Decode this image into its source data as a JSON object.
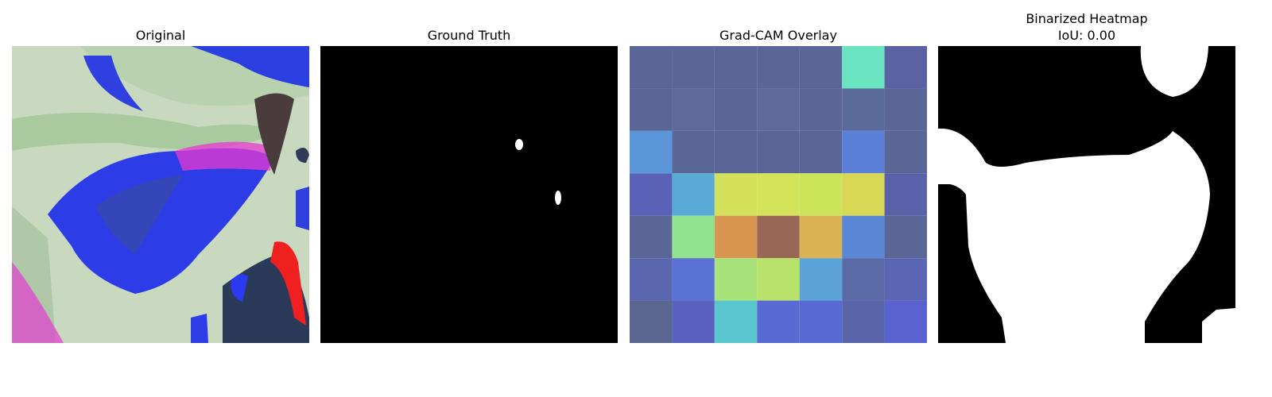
{
  "panels": [
    {
      "title": "Original"
    },
    {
      "title": "Ground Truth"
    },
    {
      "title": "Grad-CAM Overlay"
    },
    {
      "title": "Binarized Heatmap",
      "subtitle": "IoU: 0.00"
    }
  ]
}
